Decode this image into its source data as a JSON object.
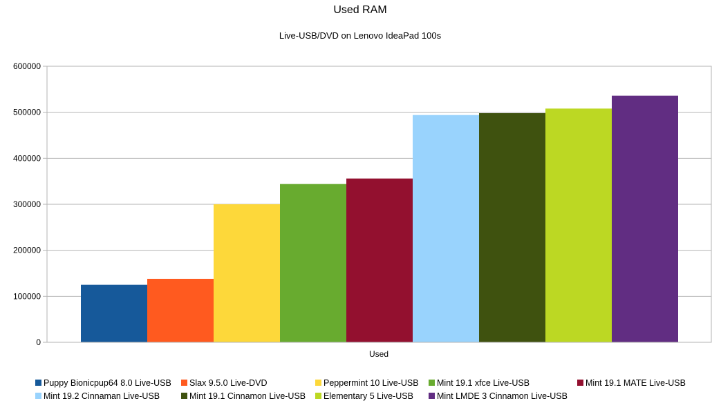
{
  "chart_data": {
    "type": "bar",
    "title": "Used RAM",
    "subtitle": "Live-USB/DVD on Lenovo IdeaPad 100s",
    "categories": [
      "Used"
    ],
    "ylim": [
      0,
      600000
    ],
    "yticks": [
      "0",
      "100000",
      "200000",
      "300000",
      "400000",
      "500000",
      "600000"
    ],
    "grid": true,
    "legend_position": "bottom",
    "series": [
      {
        "name": "Puppy Bionicpup64 8.0 Live-USB",
        "values": [
          125000
        ],
        "color": "#16599a"
      },
      {
        "name": "Slax 9.5.0 Live-DVD",
        "values": [
          138000
        ],
        "color": "#ff5a1f"
      },
      {
        "name": "Peppermint 10 Live-USB",
        "values": [
          300000
        ],
        "color": "#fdd83a"
      },
      {
        "name": "Mint 19.1 xfce Live-USB",
        "values": [
          344000
        ],
        "color": "#68ab2f"
      },
      {
        "name": "Mint 19.1 MATE Live-USB",
        "values": [
          356000
        ],
        "color": "#93102f"
      },
      {
        "name": "Mint 19.2 Cinnaman Live-USB",
        "values": [
          494000
        ],
        "color": "#99d3fd"
      },
      {
        "name": "Mint 19.1 Cinnamon Live-USB",
        "values": [
          498000
        ],
        "color": "#3f520f"
      },
      {
        "name": "Elementary 5 Live-USB",
        "values": [
          508000
        ],
        "color": "#bcd823"
      },
      {
        "name": "Mint LMDE 3 Cinnamon Live-USB",
        "values": [
          536000
        ],
        "color": "#612d82"
      }
    ]
  }
}
